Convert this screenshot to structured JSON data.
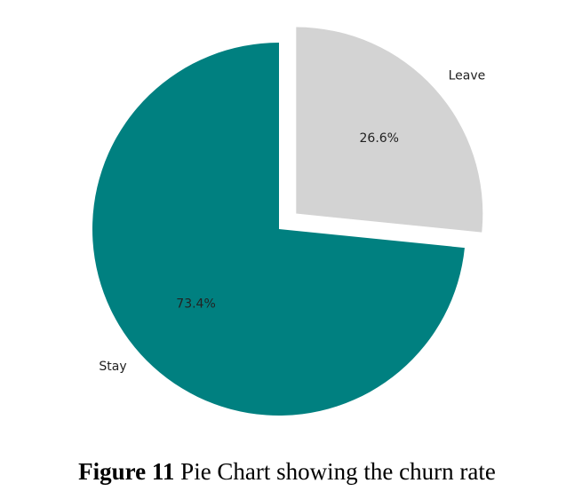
{
  "chart_data": {
    "type": "pie",
    "categories": [
      "Leave",
      "Stay"
    ],
    "values": [
      26.6,
      73.4
    ],
    "value_labels": [
      "26.6%",
      "73.4%"
    ],
    "colors": [
      "#d3d3d3",
      "#008080"
    ],
    "exploded": [
      "Leave"
    ],
    "start_angle_deg": 90,
    "direction": "counterclockwise-from-top-ending-at-leave",
    "title": ""
  },
  "caption": {
    "number": "Figure 11",
    "text": " Pie Chart showing the churn rate"
  }
}
